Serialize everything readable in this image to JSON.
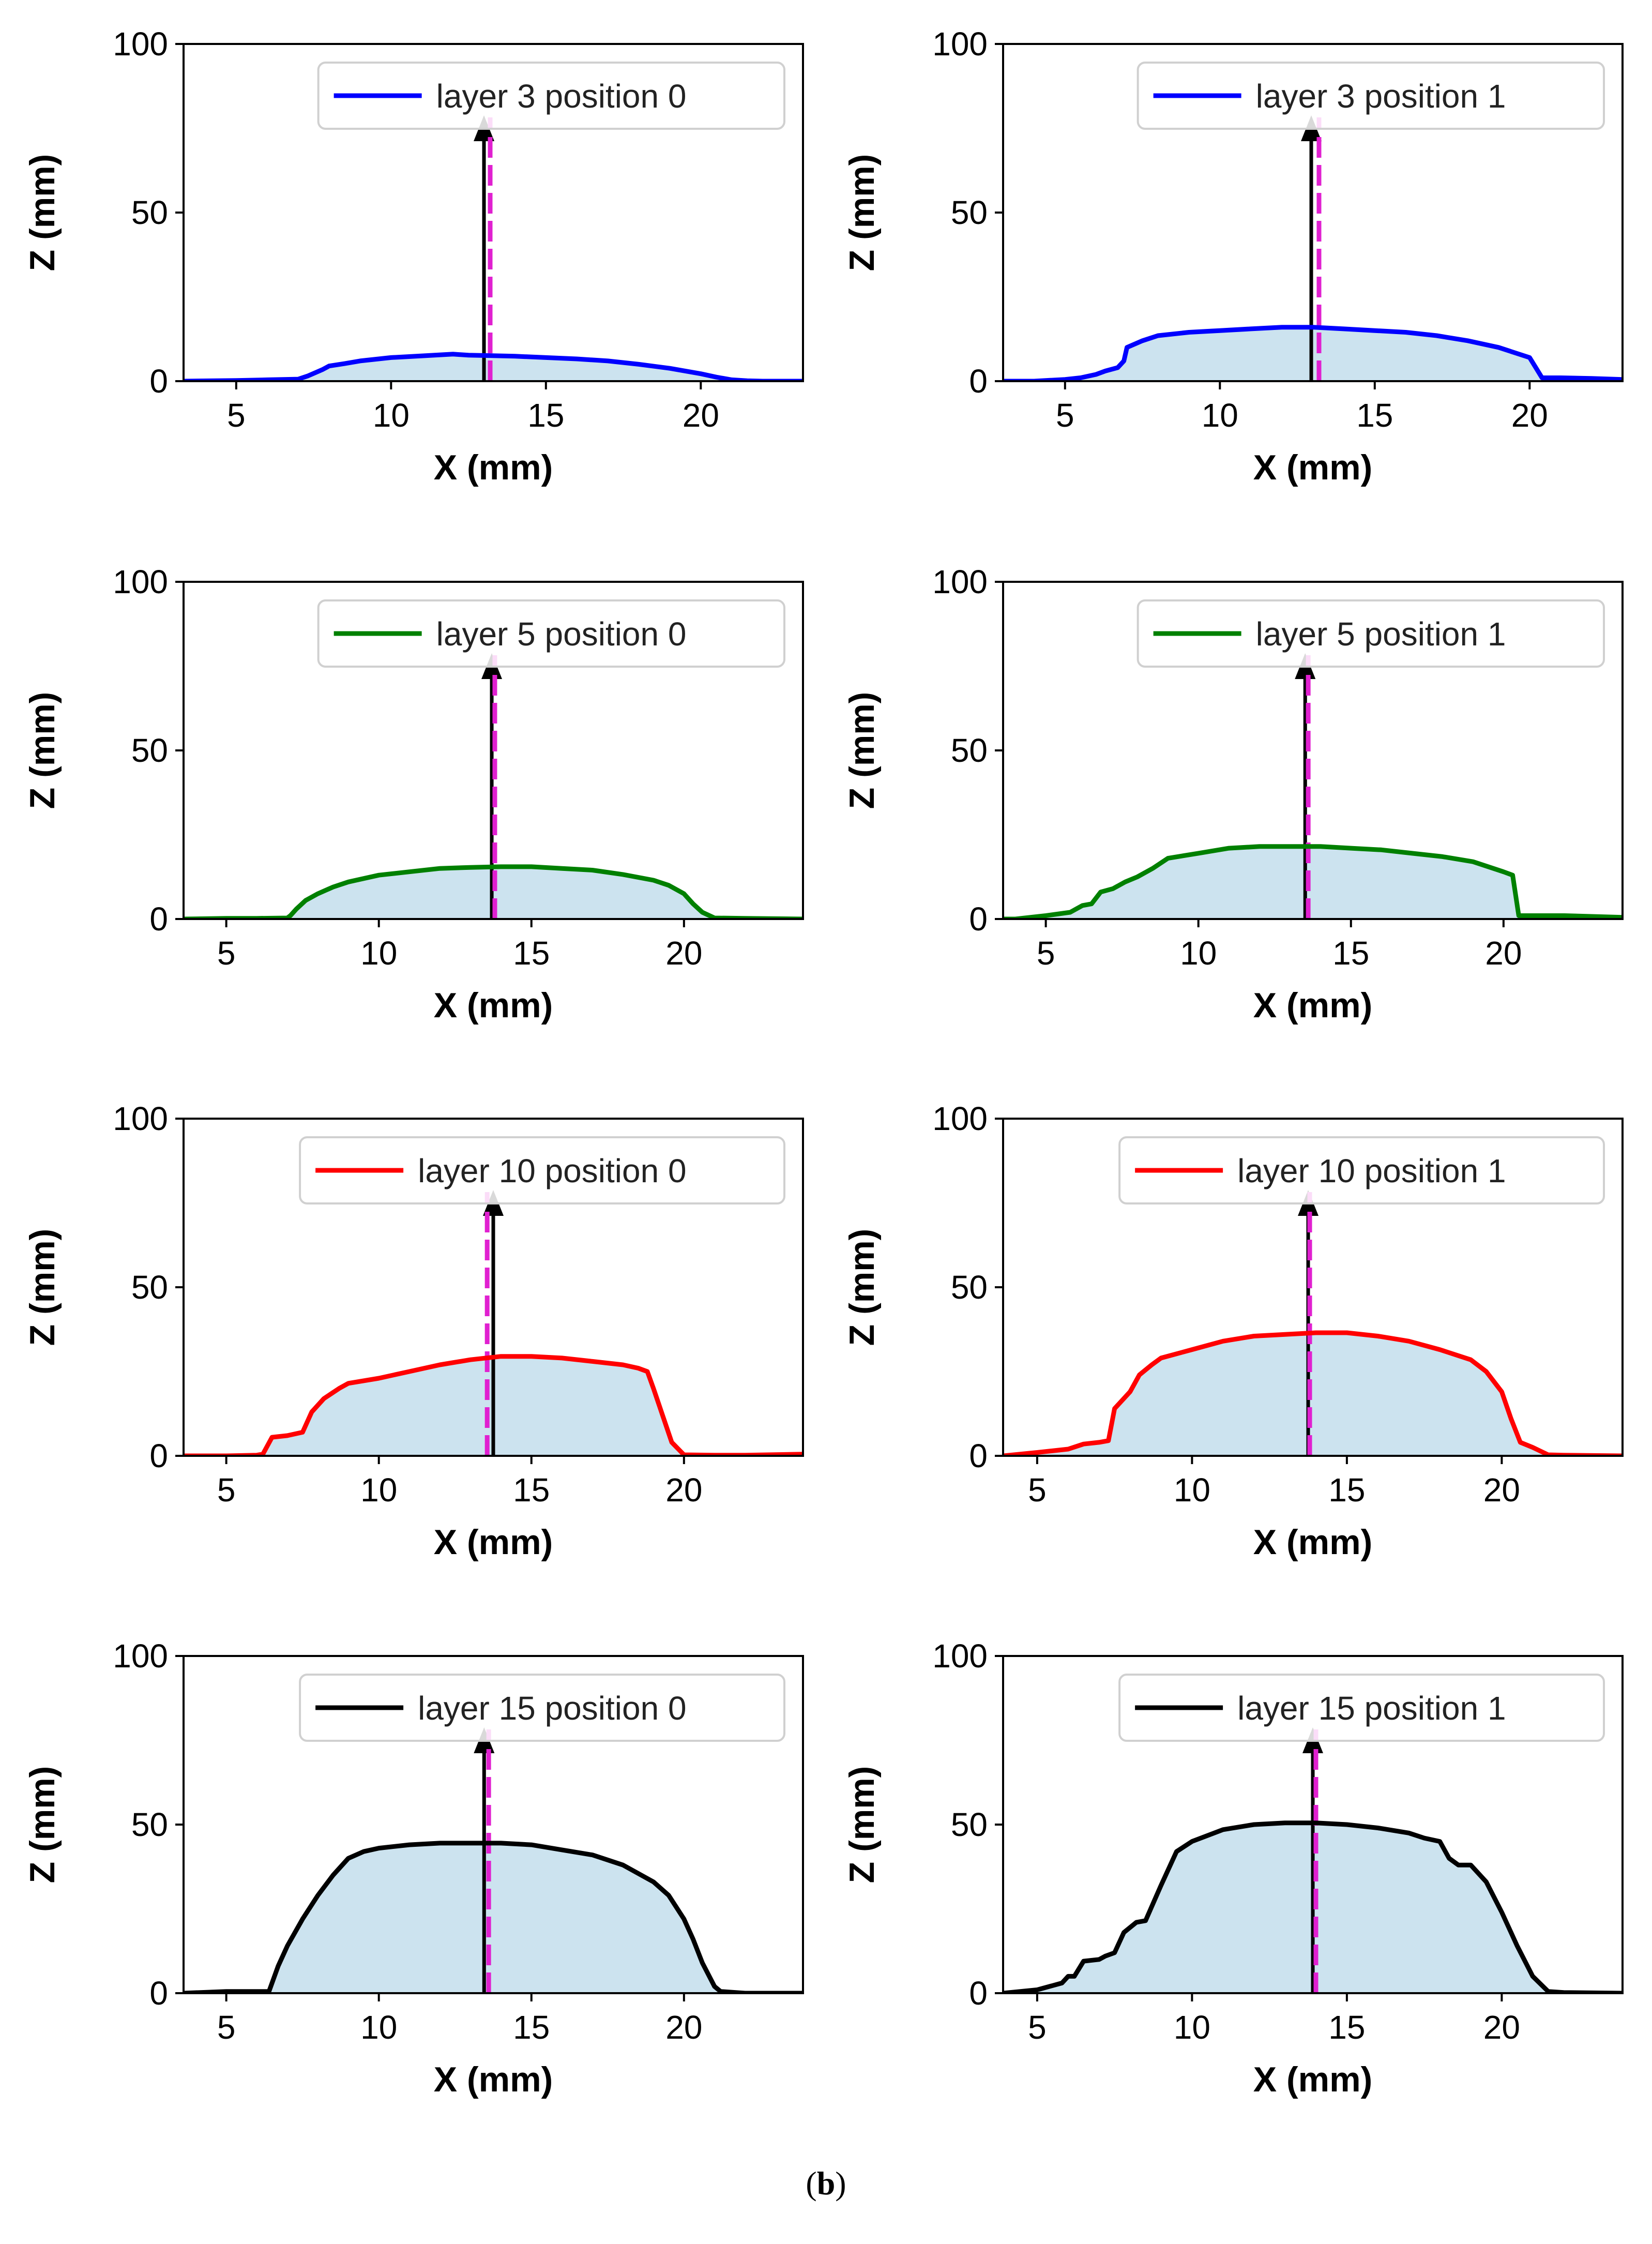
{
  "caption": {
    "open": "(",
    "letter": "b",
    "close": ")"
  },
  "colors": {
    "fill": "#cce3ef",
    "arrow": "#000000",
    "dashed": "#e020d0",
    "axis": "#000000"
  },
  "chart_data": [
    {
      "type": "line",
      "legend": "layer 3 position 0",
      "color": "#0000ff",
      "xlim": [
        3.3,
        23.3
      ],
      "ylim": [
        0,
        100
      ],
      "xticks": [
        5,
        10,
        15,
        20
      ],
      "yticks": [
        0,
        50,
        100
      ],
      "xlabel": "X (mm)",
      "ylabel": "Z (mm)",
      "arrow_x": 13.0,
      "dashed_x": 13.2,
      "arrow_top": 77,
      "legend_loc": "upper right",
      "x": [
        3.3,
        5,
        6,
        7,
        7.3,
        7.8,
        8,
        8.5,
        9,
        10,
        11,
        12,
        12.5,
        13,
        14,
        15,
        16,
        17,
        18,
        19,
        20,
        20.5,
        21,
        21.5,
        22,
        23.3
      ],
      "y": [
        0,
        0.2,
        0.4,
        0.6,
        1.5,
        3.5,
        4.5,
        5.2,
        6,
        7,
        7.5,
        8,
        7.7,
        7.6,
        7.4,
        7,
        6.6,
        6,
        5,
        3.8,
        2.2,
        1.2,
        0.4,
        0.1,
        0,
        0
      ]
    },
    {
      "type": "line",
      "legend": "layer 3 position 1",
      "color": "#0000ff",
      "xlim": [
        3.0,
        23.0
      ],
      "ylim": [
        0,
        100
      ],
      "xticks": [
        5,
        10,
        15,
        20
      ],
      "yticks": [
        0,
        50,
        100
      ],
      "xlabel": "X (mm)",
      "ylabel": "Z (mm)",
      "arrow_x": 12.95,
      "dashed_x": 13.2,
      "arrow_top": 77,
      "legend_loc": "upper right",
      "x": [
        3.0,
        4,
        5,
        5.5,
        6,
        6.3,
        6.7,
        6.9,
        7,
        7.5,
        8,
        9,
        10,
        11,
        12,
        13,
        14,
        15,
        16,
        17,
        18,
        19,
        19.5,
        20,
        20.2,
        20.4,
        21,
        22,
        23.0
      ],
      "y": [
        0,
        0,
        0.5,
        1,
        2,
        3,
        4,
        6,
        10,
        12,
        13.5,
        14.5,
        15,
        15.5,
        16,
        16,
        15.5,
        15,
        14.5,
        13.5,
        12,
        10,
        8.5,
        7,
        4,
        1,
        1,
        0.8,
        0.5
      ]
    },
    {
      "type": "line",
      "legend": "layer 5 position 0",
      "color": "#008000",
      "xlim": [
        3.6,
        23.9
      ],
      "ylim": [
        0,
        100
      ],
      "xticks": [
        5,
        10,
        15,
        20
      ],
      "yticks": [
        0,
        50,
        100
      ],
      "xlabel": "X (mm)",
      "ylabel": "Z (mm)",
      "arrow_x": 13.7,
      "dashed_x": 13.8,
      "arrow_top": 77,
      "legend_loc": "upper right",
      "x": [
        3.6,
        5,
        6,
        7,
        7.1,
        7.3,
        7.6,
        8,
        8.5,
        9,
        10,
        11,
        12,
        13,
        14,
        15,
        16,
        17,
        18,
        19,
        19.5,
        20,
        20.3,
        20.6,
        21,
        22,
        23.9
      ],
      "y": [
        0,
        0.2,
        0.2,
        0.3,
        1,
        3,
        5.5,
        7.5,
        9.5,
        11,
        13,
        14,
        15,
        15.3,
        15.5,
        15.5,
        15,
        14.5,
        13.2,
        11.5,
        10,
        7.5,
        4.5,
        2,
        0.3,
        0.2,
        0
      ]
    },
    {
      "type": "line",
      "legend": "layer 5 position 1",
      "color": "#008000",
      "xlim": [
        3.6,
        23.9
      ],
      "ylim": [
        0,
        100
      ],
      "xticks": [
        5,
        10,
        15,
        20
      ],
      "yticks": [
        0,
        50,
        100
      ],
      "xlabel": "X (mm)",
      "ylabel": "Z (mm)",
      "arrow_x": 13.5,
      "dashed_x": 13.6,
      "arrow_top": 77,
      "legend_loc": "upper right",
      "x": [
        3.6,
        4,
        5,
        5.8,
        6,
        6.2,
        6.5,
        6.8,
        7.2,
        7.6,
        8,
        8.5,
        9,
        10,
        11,
        12,
        13,
        14,
        15,
        16,
        17,
        18,
        19,
        20,
        20.3,
        20.5,
        21,
        22,
        23.9
      ],
      "y": [
        0,
        0,
        1,
        2,
        3,
        4,
        4.5,
        8,
        9,
        11,
        12.5,
        15,
        18,
        19.5,
        21,
        21.5,
        21.5,
        21.5,
        21,
        20.5,
        19.5,
        18.5,
        17,
        14,
        13,
        1,
        1,
        1,
        0.5
      ]
    },
    {
      "type": "line",
      "legend": "layer 10 position 0",
      "color": "#ff0000",
      "xlim": [
        3.6,
        23.9
      ],
      "ylim": [
        0,
        100
      ],
      "xticks": [
        5,
        10,
        15,
        20
      ],
      "yticks": [
        0,
        50,
        100
      ],
      "xlabel": "X (mm)",
      "ylabel": "Z (mm)",
      "arrow_x": 13.75,
      "dashed_x": 13.55,
      "arrow_top": 77,
      "legend_loc": "upper right",
      "x": [
        3.6,
        5,
        6,
        6.2,
        6.5,
        7,
        7.5,
        7.8,
        8.2,
        8.7,
        9,
        10,
        11,
        12,
        13,
        14,
        15,
        16,
        17,
        18,
        18.5,
        18.8,
        19,
        19.3,
        19.6,
        20,
        21,
        22,
        23.9
      ],
      "y": [
        0,
        0,
        0.2,
        0.5,
        5.5,
        6,
        7,
        13,
        17,
        20,
        21.5,
        23,
        25,
        27,
        28.5,
        29.5,
        29.5,
        29,
        28,
        27,
        26,
        25,
        20,
        12,
        4,
        0.3,
        0.2,
        0.2,
        0.5
      ]
    },
    {
      "type": "line",
      "legend": "layer 10 position 1",
      "color": "#ff0000",
      "xlim": [
        3.9,
        23.9
      ],
      "ylim": [
        0,
        100
      ],
      "xticks": [
        5,
        10,
        15,
        20
      ],
      "yticks": [
        0,
        50,
        100
      ],
      "xlabel": "X (mm)",
      "ylabel": "Z (mm)",
      "arrow_x": 13.75,
      "dashed_x": 13.8,
      "arrow_top": 77,
      "legend_loc": "upper right",
      "x": [
        3.9,
        5,
        6,
        6.5,
        7,
        7.3,
        7.5,
        8,
        8.3,
        8.7,
        9,
        10,
        11,
        12,
        13,
        14,
        15,
        16,
        17,
        18,
        19,
        19.5,
        20,
        20.3,
        20.6,
        21,
        21.5,
        22,
        23.9
      ],
      "y": [
        0,
        1,
        2,
        3.5,
        4,
        4.5,
        14,
        19,
        24,
        27,
        29,
        31.5,
        34,
        35.5,
        36,
        36.5,
        36.5,
        35.5,
        34,
        31.5,
        28.5,
        25,
        19,
        11,
        4,
        2.5,
        0.3,
        0.2,
        0
      ]
    },
    {
      "type": "line",
      "legend": "layer 15 position 0",
      "color": "#000000",
      "xlim": [
        3.6,
        23.9
      ],
      "ylim": [
        0,
        100
      ],
      "xticks": [
        5,
        10,
        15,
        20
      ],
      "yticks": [
        0,
        50,
        100
      ],
      "xlabel": "X (mm)",
      "ylabel": "Z (mm)",
      "arrow_x": 13.45,
      "dashed_x": 13.6,
      "arrow_top": 77,
      "legend_loc": "upper right",
      "x": [
        3.6,
        5,
        6,
        6.4,
        6.7,
        7,
        7.5,
        8,
        8.5,
        9,
        9.5,
        10,
        11,
        12,
        13,
        14,
        15,
        16,
        17,
        18,
        19,
        19.5,
        20,
        20.3,
        20.6,
        21,
        21.2,
        22,
        23.9
      ],
      "y": [
        0,
        0.5,
        0.5,
        0.5,
        8,
        14,
        22,
        29,
        35,
        40,
        42,
        43,
        44,
        44.5,
        44.5,
        44.5,
        44,
        42.5,
        41,
        38,
        33,
        29,
        22,
        16,
        9,
        2,
        0.5,
        0,
        0
      ]
    },
    {
      "type": "line",
      "legend": "layer 15 position 1",
      "color": "#000000",
      "xlim": [
        3.9,
        23.9
      ],
      "ylim": [
        0,
        100
      ],
      "xticks": [
        5,
        10,
        15,
        20
      ],
      "yticks": [
        0,
        50,
        100
      ],
      "xlabel": "X (mm)",
      "ylabel": "Z (mm)",
      "arrow_x": 13.9,
      "dashed_x": 14.0,
      "arrow_top": 77,
      "legend_loc": "upper right",
      "x": [
        3.9,
        5,
        5.8,
        6,
        6.2,
        6.5,
        7,
        7.2,
        7.5,
        7.8,
        8.2,
        8.5,
        9,
        9.5,
        10,
        11,
        12,
        13,
        14,
        15,
        16,
        17,
        17.5,
        18,
        18.3,
        18.6,
        19,
        19.5,
        20,
        20.5,
        21,
        21.5,
        22,
        23.9
      ],
      "y": [
        0,
        1,
        3,
        5,
        5,
        9.5,
        10,
        11,
        12,
        18,
        21,
        21.5,
        32,
        42,
        45,
        48.5,
        50,
        50.5,
        50.5,
        50,
        49,
        47.5,
        46,
        45,
        40,
        38,
        38,
        33,
        24,
        14,
        5,
        0.5,
        0.2,
        0
      ]
    }
  ]
}
